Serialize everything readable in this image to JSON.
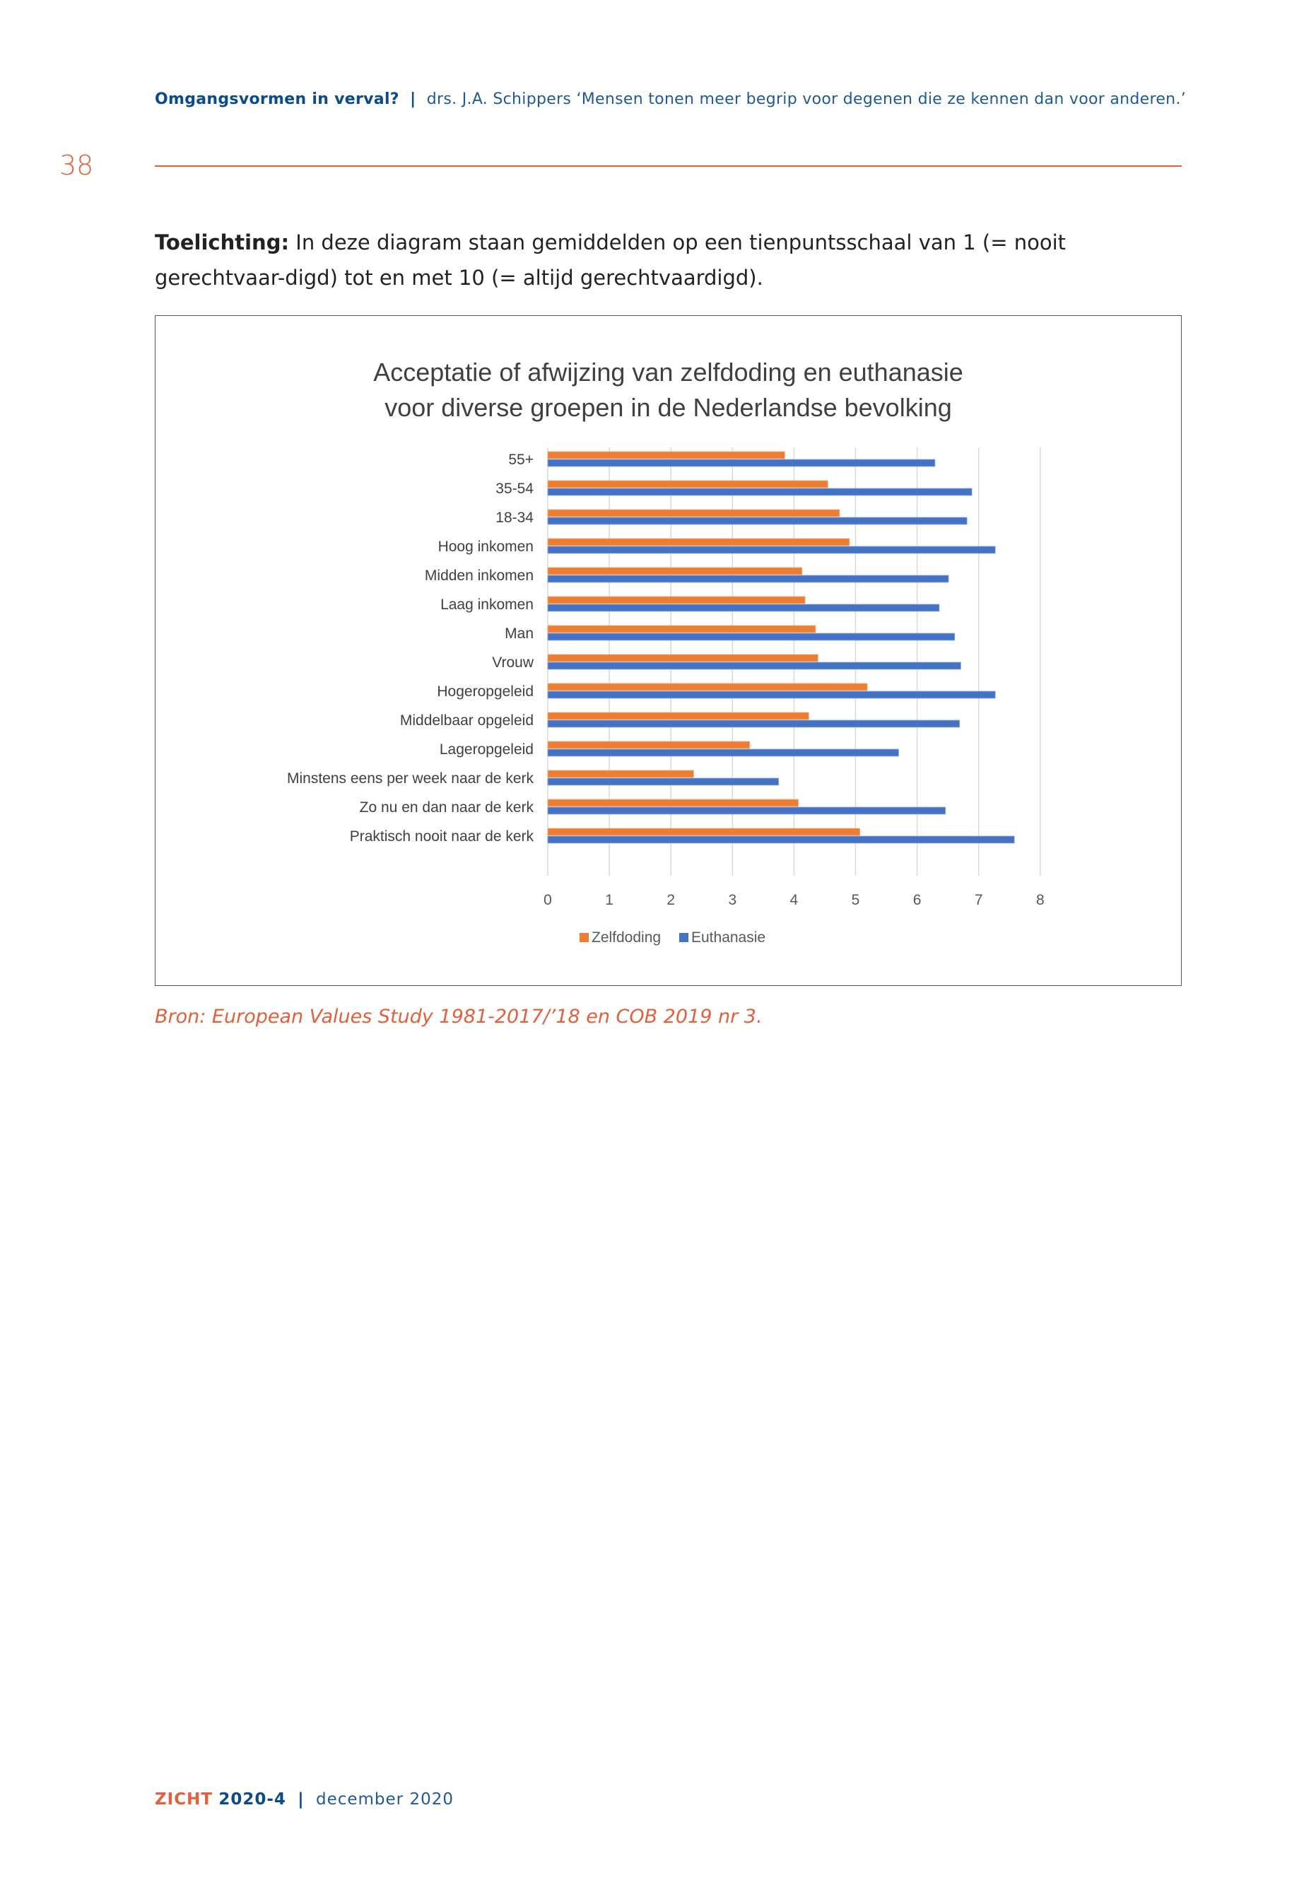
{
  "header": {
    "section": "Omgangsvormen in verval?",
    "separator": "|",
    "subtitle": "drs. J.A. Schippers ‘Mensen tonen meer begrip voor degenen die ze kennen dan voor anderen.’"
  },
  "page_number": "38",
  "intro": {
    "label": "Toelichting:",
    "text": "In deze diagram staan gemiddelden op een tienpuntsschaal van 1 (= nooit gerechtvaar-digd) tot en met 10 (= altijd gerechtvaardigd)."
  },
  "chart_data": {
    "type": "bar",
    "orientation": "horizontal",
    "title_lines": [
      "Acceptatie of afwijzing van zelfdoding en euthanasie",
      "voor diverse groepen in de Nederlandse bevolking"
    ],
    "categories": [
      "55+",
      "35-54",
      "18-34",
      "Hoog inkomen",
      "Midden inkomen",
      "Laag inkomen",
      "Man",
      "Vrouw",
      "Hogeropgeleid",
      "Middelbaar opgeleid",
      "Lageropgeleid",
      "Minstens eens per week naar de kerk",
      "Zo nu en dan naar de kerk",
      "Praktisch nooit naar de kerk"
    ],
    "series": [
      {
        "name": "Zelfdoding",
        "color": "#ed7d31",
        "values": [
          3.85,
          4.55,
          4.74,
          4.9,
          4.13,
          4.18,
          4.35,
          4.39,
          5.19,
          4.24,
          3.28,
          2.37,
          4.07,
          5.07
        ]
      },
      {
        "name": "Euthanasie",
        "color": "#4472c4",
        "values": [
          6.29,
          6.89,
          6.81,
          7.27,
          6.51,
          6.36,
          6.61,
          6.71,
          7.27,
          6.69,
          5.7,
          3.75,
          6.46,
          7.58
        ]
      }
    ],
    "xlim": [
      0,
      8
    ],
    "xticks": [
      "0",
      "1",
      "2",
      "3",
      "4",
      "5",
      "6",
      "7",
      "8"
    ],
    "grid": true,
    "legend": "bottom"
  },
  "source": "Bron: European Values Study 1981-2017/’18 en COB 2019 nr 3.",
  "footer": {
    "brand": "ZICHT",
    "issue": "2020-4",
    "separator": "|",
    "date": "december 2020"
  }
}
